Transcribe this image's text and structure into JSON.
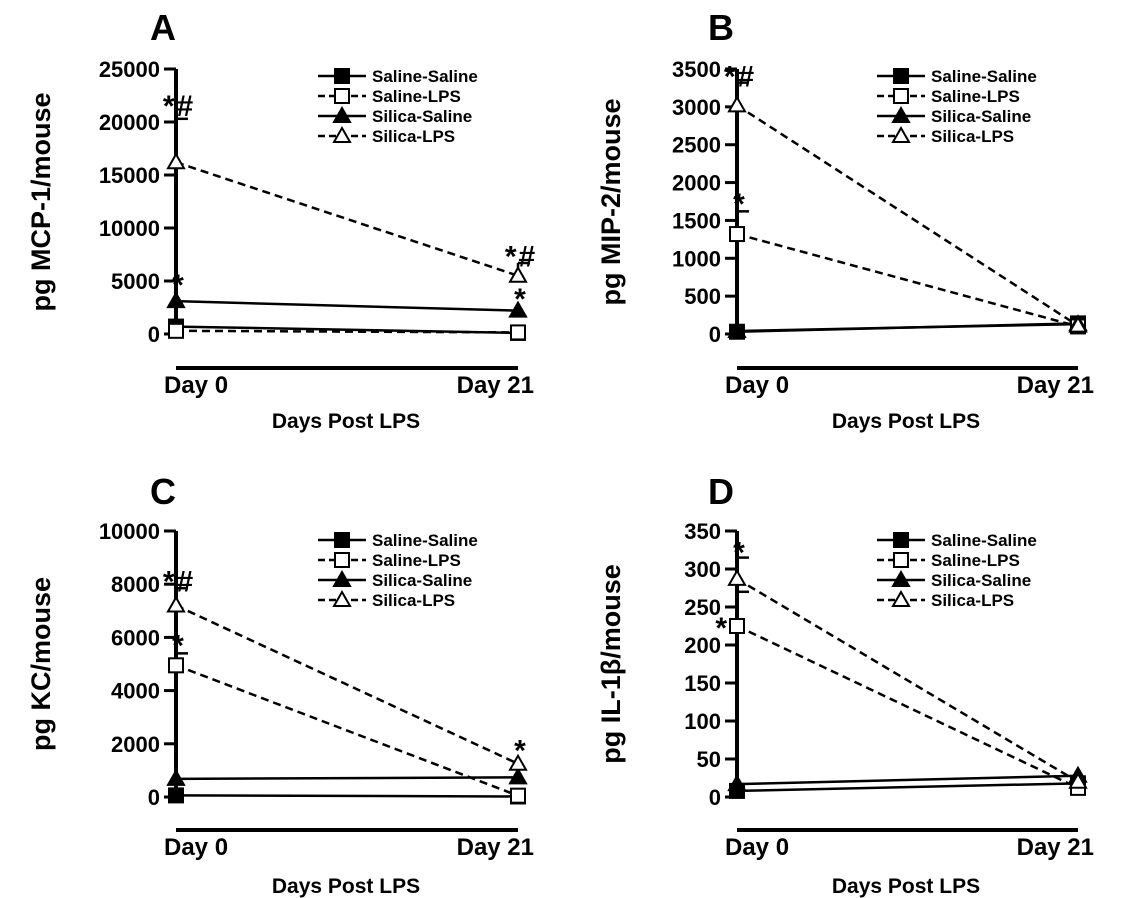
{
  "legend_items": [
    {
      "label": "Saline-Saline",
      "marker": "square-filled",
      "dash": false
    },
    {
      "label": "Saline-LPS",
      "marker": "square-open",
      "dash": true
    },
    {
      "label": "Silica-Saline",
      "marker": "triangle-filled",
      "dash": false
    },
    {
      "label": "Silica-LPS",
      "marker": "triangle-open",
      "dash": true
    }
  ],
  "chart_data": [
    {
      "panel": "A",
      "type": "line",
      "categories": [
        "Day 0",
        "Day 21"
      ],
      "xlabel": "Days Post LPS",
      "ylabel": "pg MCP-1/mouse",
      "ylim": [
        0,
        25000
      ],
      "yticks": [
        0,
        5000,
        10000,
        15000,
        20000,
        25000
      ],
      "legend": "top-right",
      "series": [
        {
          "name": "Saline-Saline",
          "values": [
            700,
            100
          ],
          "errors": [
            0,
            0
          ]
        },
        {
          "name": "Saline-LPS",
          "values": [
            300,
            150
          ],
          "errors": [
            0,
            0
          ]
        },
        {
          "name": "Silica-Saline",
          "values": [
            3100,
            2200
          ],
          "errors": [
            0,
            0
          ]
        },
        {
          "name": "Silica-LPS",
          "values": [
            16200,
            5500
          ],
          "errors": [
            4100,
            1200
          ]
        }
      ],
      "annotations": [
        {
          "text": "*#",
          "category": 0,
          "value": 21500
        },
        {
          "text": "*",
          "category": 0,
          "value": 4600
        },
        {
          "text": "*#",
          "category": 1,
          "value": 7300
        },
        {
          "text": "*",
          "category": 1,
          "value": 3300
        }
      ]
    },
    {
      "panel": "B",
      "type": "line",
      "categories": [
        "Day 0",
        "Day 21"
      ],
      "xlabel": "Days Post LPS",
      "ylabel": "pg MIP-2/mouse",
      "ylim": [
        0,
        3500
      ],
      "yticks": [
        0,
        500,
        1000,
        1500,
        2000,
        2500,
        3000,
        3500
      ],
      "legend": "top-right",
      "series": [
        {
          "name": "Saline-Saline",
          "values": [
            30,
            140
          ],
          "errors": [
            0,
            0
          ]
        },
        {
          "name": "Saline-LPS",
          "values": [
            1320,
            100
          ],
          "errors": [
            300,
            0
          ]
        },
        {
          "name": "Silica-Saline",
          "values": [
            40,
            130
          ],
          "errors": [
            0,
            0
          ]
        },
        {
          "name": "Silica-LPS",
          "values": [
            3020,
            110
          ],
          "errors": [
            300,
            0
          ]
        }
      ],
      "annotations": [
        {
          "text": "*#",
          "category": 0,
          "value": 3400
        },
        {
          "text": "*",
          "category": 0,
          "value": 1720
        }
      ]
    },
    {
      "panel": "C",
      "type": "line",
      "categories": [
        "Day 0",
        "Day 21"
      ],
      "xlabel": "Days Post LPS",
      "ylabel": "pg KC/mouse",
      "ylim": [
        0,
        10000
      ],
      "yticks": [
        0,
        2000,
        4000,
        6000,
        8000,
        10000
      ],
      "legend": "top-right",
      "series": [
        {
          "name": "Saline-Saline",
          "values": [
            60,
            20
          ],
          "errors": [
            0,
            0
          ]
        },
        {
          "name": "Saline-LPS",
          "values": [
            4950,
            50
          ],
          "errors": [
            450,
            0
          ]
        },
        {
          "name": "Silica-Saline",
          "values": [
            680,
            740
          ],
          "errors": [
            0,
            0
          ]
        },
        {
          "name": "Silica-LPS",
          "values": [
            7200,
            1250
          ],
          "errors": [
            650,
            0
          ]
        }
      ],
      "annotations": [
        {
          "text": "*#",
          "category": 0,
          "value": 8100
        },
        {
          "text": "*",
          "category": 0,
          "value": 5700
        },
        {
          "text": "*",
          "category": 1,
          "value": 1750
        }
      ]
    },
    {
      "panel": "D",
      "type": "line",
      "categories": [
        "Day 0",
        "Day 21"
      ],
      "xlabel": "Days Post LPS",
      "ylabel": "pg IL-1β/mouse",
      "ylim": [
        0,
        350
      ],
      "yticks": [
        0,
        50,
        100,
        150,
        200,
        250,
        300,
        350
      ],
      "legend": "top-right",
      "series": [
        {
          "name": "Saline-Saline",
          "values": [
            8,
            18
          ],
          "errors": [
            0,
            0
          ]
        },
        {
          "name": "Saline-LPS",
          "values": [
            225,
            12
          ],
          "errors": [
            45,
            0
          ]
        },
        {
          "name": "Silica-Saline",
          "values": [
            17,
            28
          ],
          "errors": [
            0,
            0
          ]
        },
        {
          "name": "Silica-LPS",
          "values": [
            287,
            20
          ],
          "errors": [
            28,
            0
          ]
        }
      ],
      "annotations": [
        {
          "text": "*",
          "category": 0,
          "value": 322
        },
        {
          "text": "*",
          "category": 0,
          "value": 225,
          "side": "left"
        }
      ]
    }
  ]
}
